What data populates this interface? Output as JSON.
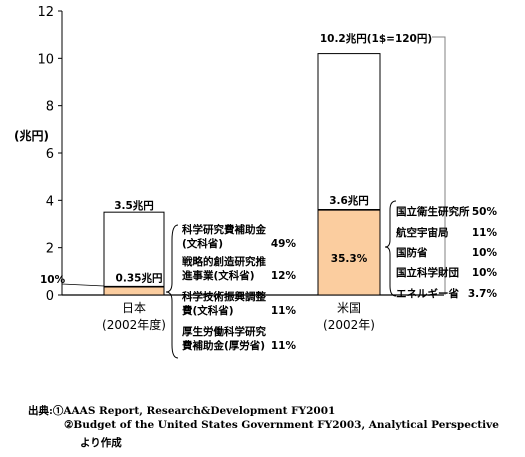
{
  "chart_data": {
    "type": "bar",
    "ylabel": "(兆円)",
    "ylim": [
      0,
      12
    ],
    "yticks": [
      0,
      2,
      4,
      6,
      8,
      10,
      12
    ],
    "categories": [
      {
        "line1": "日本",
        "line2": "(2002年度)"
      },
      {
        "line1": "米国",
        "line2": "(2002年)"
      }
    ],
    "bars": [
      {
        "total": 3.5,
        "total_label": "3.5兆円",
        "part": 0.35,
        "part_label": "0.35兆円",
        "share_label": "10%",
        "breakdown": [
          {
            "line1": "科学研究費補助金",
            "line2": "(文科省)",
            "pct": "49%"
          },
          {
            "line1": "戦略的創造研究推",
            "line2": "進事業(文科省)",
            "pct": "12%"
          },
          {
            "line1": "科学技術振興調整",
            "line2": "費(文科省)",
            "pct": "11%"
          },
          {
            "line1": "厚生労働科学研究",
            "line2": "費補助金(厚労省)",
            "pct": "11%"
          }
        ]
      },
      {
        "total": 10.2,
        "total_label": "10.2兆円(1$=120円)",
        "part": 3.6,
        "part_label": "3.6兆円",
        "share_label": "35.3%",
        "breakdown": [
          {
            "line1": "国立衛生研究所",
            "pct": "50%"
          },
          {
            "line1": "航空宇宙局",
            "pct": "11%"
          },
          {
            "line1": "国防省",
            "pct": "10%"
          },
          {
            "line1": "国立科学財団",
            "pct": "10%"
          },
          {
            "line1": "エネルギー省",
            "pct": "3.7%"
          }
        ]
      }
    ],
    "colors": {
      "part_fill": "#fbcd9f",
      "outline": "#000000",
      "connector": "#808080"
    }
  },
  "source": {
    "line1": "出典:①AAAS Report, Research&Development FY2001",
    "line2": "②Budget of the United States Government FY2003, Analytical Perspective",
    "line3": "より作成"
  }
}
